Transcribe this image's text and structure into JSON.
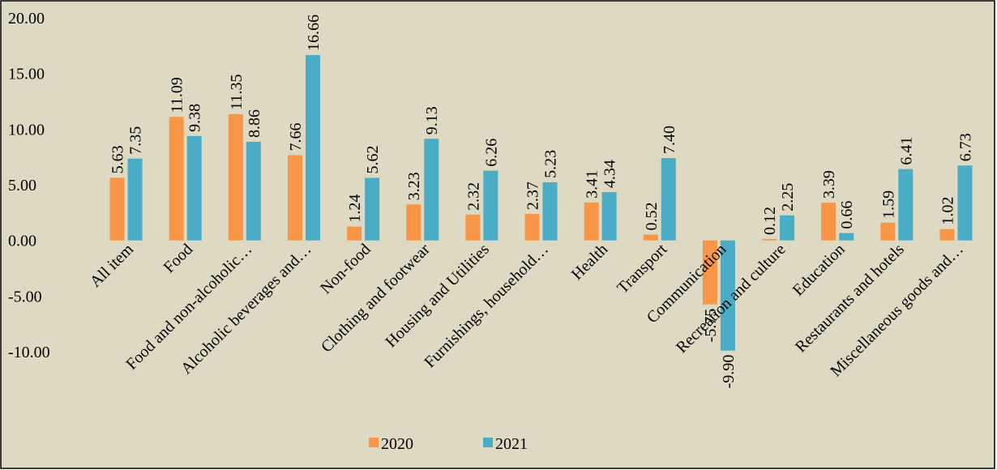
{
  "chart_data": {
    "type": "bar",
    "categories": [
      "All item",
      "Food",
      "Food and non-alcoholic…",
      "Alcoholic beverages and…",
      "Non-food",
      "Clothing and footwear",
      "Housing and Utilities",
      "Furnishings, household…",
      "Health",
      "Transport",
      "Communication",
      "Recreation and culture",
      "Education",
      "Restaurants and hotels",
      "Miscellaneous goods and…"
    ],
    "series": [
      {
        "name": "2020",
        "color": "#f79646",
        "values": [
          5.63,
          11.09,
          11.35,
          7.66,
          1.24,
          3.23,
          2.32,
          2.37,
          3.41,
          0.52,
          -5.75,
          0.12,
          3.39,
          1.59,
          1.02
        ],
        "value_labels": [
          "5.63",
          "11.09",
          "11.35",
          "7.66",
          "1.24",
          "3.23",
          "2.32",
          "2.37",
          "3.41",
          "0.52",
          "-5.75",
          "0.12",
          "3.39",
          "1.59",
          "1.02"
        ]
      },
      {
        "name": "2021",
        "color": "#4bacc6",
        "values": [
          7.35,
          9.38,
          8.86,
          16.66,
          5.62,
          9.13,
          6.26,
          5.23,
          4.34,
          7.4,
          -9.9,
          2.25,
          0.66,
          6.41,
          6.73
        ],
        "value_labels": [
          "7.35",
          "9.38",
          "8.86",
          "16.66",
          "5.62",
          "9.13",
          "6.26",
          "5.23",
          "4.34",
          "7.40",
          "-9.90",
          "2.25",
          "0.66",
          "6.41",
          "6.73"
        ]
      }
    ],
    "ylim": [
      -10,
      20
    ],
    "yticks": [
      {
        "value": -10,
        "label": "-10.00"
      },
      {
        "value": -5,
        "label": "-5.00"
      },
      {
        "value": 0,
        "label": "0.00"
      },
      {
        "value": 5,
        "label": "5.00"
      },
      {
        "value": 10,
        "label": "10.00"
      },
      {
        "value": 15,
        "label": "15.00"
      },
      {
        "value": 20,
        "label": "20.00"
      }
    ],
    "grid": false,
    "legend": "bottom"
  }
}
